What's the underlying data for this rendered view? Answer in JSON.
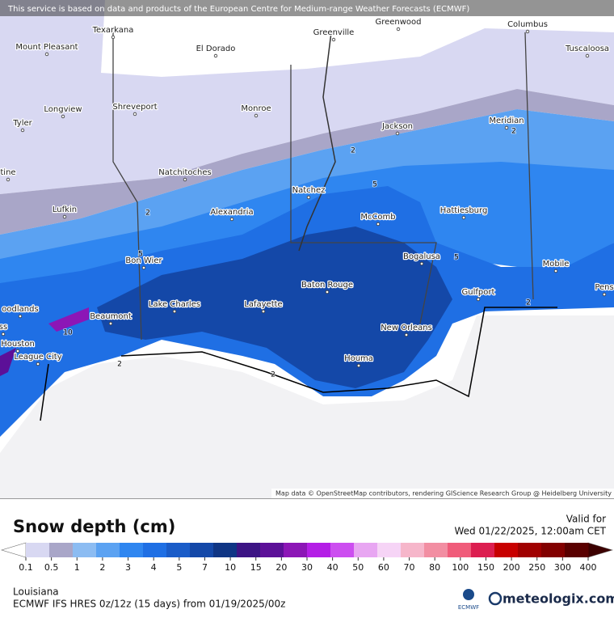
{
  "header": {
    "banner": "This service is based on data and products of the European Centre for Medium-range Weather Forecasts (ECMWF)"
  },
  "map": {
    "cities": [
      "Texarkana",
      "Greenville",
      "Greenwood",
      "Columbus",
      "Mount Pleasant",
      "El Dorado",
      "Tuscaloosa",
      "Longview",
      "Shreveport",
      "Monroe",
      "Jackson",
      "Meridian",
      "Tyler",
      "Natchitoches",
      "Natchez",
      "Lufkin",
      "Alexandria",
      "McComb",
      "Hattiesburg",
      "Bon Wier",
      "Bogalusa",
      "Mobile",
      "Baton Rouge",
      "Gulfport",
      "oodlands",
      "Lake Charles",
      "Lafayette",
      "Beaumont",
      "New Orleans",
      "Houston",
      "League City",
      "Houma",
      "Pens",
      "tine",
      "ss"
    ],
    "contour_labels": [
      "2",
      "2",
      "2",
      "2",
      "2",
      "2",
      "5",
      "5",
      "5",
      "10"
    ],
    "attribution": "Map data © OpenStreetMap contributors, rendering GIScience Research Group @ Heidelberg University"
  },
  "footer": {
    "title": "Snow depth (cm)",
    "valid_label": "Valid for",
    "valid_time": "Wed 01/22/2025, 12:00am CET",
    "legend": {
      "labels": [
        0.1,
        0.5,
        1,
        2,
        3,
        4,
        5,
        7,
        10,
        15,
        20,
        30,
        40,
        50,
        60,
        70,
        80,
        100,
        150,
        200,
        250,
        300,
        400
      ],
      "colors": [
        "#d8d8f2",
        "#a9a6c8",
        "#8cbcf2",
        "#5ba2f2",
        "#2f86f0",
        "#1f6fe4",
        "#1a5cc8",
        "#1448a8",
        "#0f3584",
        "#3c1484",
        "#5c1098",
        "#8c16b6",
        "#b41ee6",
        "#cc4ef0",
        "#e8a6f2",
        "#f6d4f6",
        "#f6b6ca",
        "#f28ea2",
        "#f05c7a",
        "#dc1e50",
        "#c80000",
        "#a00000",
        "#820000",
        "#5a0000"
      ],
      "below_color": "#ffffff",
      "above_color": "#3c0000"
    },
    "region": "Louisiana",
    "model_info": "ECMWF IFS HRES 0z/12z (15 days) from 01/19/2025/00z",
    "ecmwf_logo": "ECMWF",
    "brand": "meteologix.com"
  }
}
